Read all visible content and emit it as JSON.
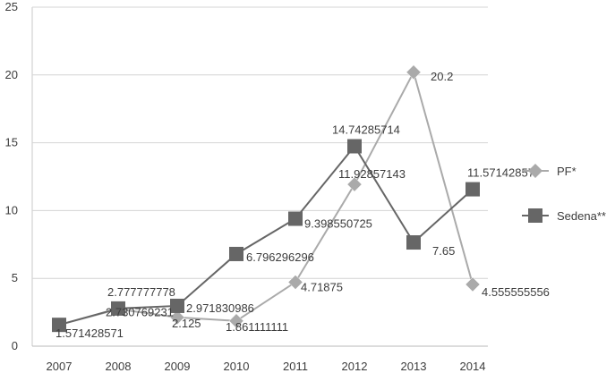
{
  "chart_data": {
    "type": "line",
    "categories": [
      "2007",
      "2008",
      "2009",
      "2010",
      "2011",
      "2012",
      "2013",
      "2014"
    ],
    "ylim": [
      0,
      25
    ],
    "yticks": [
      0,
      5,
      10,
      15,
      20,
      25
    ],
    "grid": true,
    "legend_position": "right",
    "series": [
      {
        "name": "PF*",
        "marker": "diamond",
        "color": "#aaaaaa",
        "values": [
          1.571428571,
          2.730769231,
          2.125,
          1.861111111,
          4.71875,
          11.92857143,
          20.2,
          4.555555556
        ],
        "labels": [
          "1.571428571",
          "2.730769231",
          "2.125",
          "1.861111111",
          "4.71875",
          "11.92857143",
          "20.2",
          "4.555555556"
        ]
      },
      {
        "name": "Sedena**",
        "marker": "square",
        "color": "#666666",
        "values": [
          1.571428571,
          2.777777778,
          2.971830986,
          6.796296296,
          9.398550725,
          14.74285714,
          7.65,
          11.57142857
        ],
        "labels": [
          "",
          "2.777777778",
          "2.971830986",
          "6.796296296",
          "9.398550725",
          "14.74285714",
          "7.65",
          "11.57142857"
        ]
      }
    ]
  }
}
